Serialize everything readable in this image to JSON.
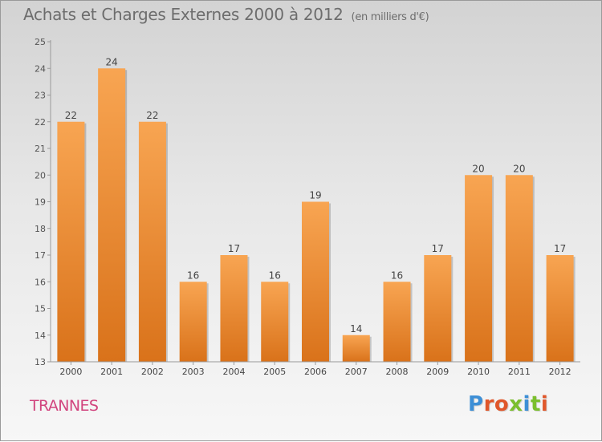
{
  "header": {
    "title": "Achats et Charges Externes 2000 à 2012",
    "unit": "(en milliers d'€)"
  },
  "footer": {
    "commune": "TRANNES",
    "logo": "Proxiti"
  },
  "colors": {
    "bar_light": "#f8a552",
    "bar_dark": "#d9721a",
    "commune": "#d1447e",
    "logo_letters": [
      "#3d8fd6",
      "#e0572b",
      "#e0572b",
      "#7bbf2d",
      "#3d8fd6",
      "#7bbf2d",
      "#e0572b"
    ]
  },
  "chart_data": {
    "type": "bar",
    "title": "Achats et Charges Externes 2000 à 2012",
    "subtitle": "(en milliers d'€)",
    "categories": [
      "2000",
      "2001",
      "2002",
      "2003",
      "2004",
      "2005",
      "2006",
      "2007",
      "2008",
      "2009",
      "2010",
      "2011",
      "2012"
    ],
    "values": [
      22,
      24,
      22,
      16,
      17,
      16,
      19,
      14,
      16,
      17,
      20,
      20,
      17
    ],
    "ylim": [
      13,
      25
    ],
    "yticks": [
      13,
      14,
      15,
      16,
      17,
      18,
      19,
      20,
      21,
      22,
      23,
      24,
      25
    ],
    "grid": false,
    "data_labels": true
  }
}
